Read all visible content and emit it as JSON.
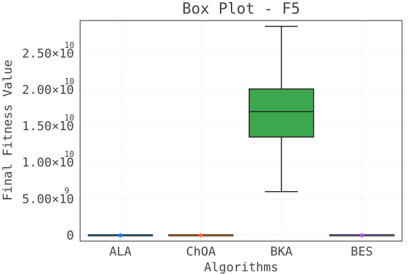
{
  "chart_data": {
    "type": "box",
    "title": "Box Plot - F5",
    "xlabel": "Algorithms",
    "ylabel": "Final Fitness Value",
    "categories": [
      "ALA",
      "ChOA",
      "BKA",
      "BES"
    ],
    "ylim": [
      -800000000,
      29500000000
    ],
    "yticks": [
      {
        "value": 0,
        "mantissa": "0",
        "exponent": ""
      },
      {
        "value": 5000000000,
        "mantissa": "5.00×10",
        "exponent": "9"
      },
      {
        "value": 10000000000,
        "mantissa": "1.00×10",
        "exponent": "10"
      },
      {
        "value": 15000000000,
        "mantissa": "1.50×10",
        "exponent": "10"
      },
      {
        "value": 20000000000,
        "mantissa": "2.00×10",
        "exponent": "10"
      },
      {
        "value": 25000000000,
        "mantissa": "2.50×10",
        "exponent": "10"
      }
    ],
    "grid": true,
    "boxes": [
      {
        "name": "ALA",
        "min": 0,
        "q1": 0,
        "median": 0,
        "q3": 0,
        "max": 0,
        "color": "#1f77b4",
        "marker": "#1f77e4"
      },
      {
        "name": "ChOA",
        "min": 0,
        "q1": 0,
        "median": 0,
        "q3": 0,
        "max": 0,
        "color": "#ff7f0e",
        "marker": "#ff6f2e"
      },
      {
        "name": "BKA",
        "min": 6000000000,
        "q1": 13500000000,
        "median": 17000000000,
        "q3": 20100000000,
        "max": 28700000000,
        "color": "#3ca74c",
        "marker": "#3ca74c"
      },
      {
        "name": "BES",
        "min": 0,
        "q1": 0,
        "median": 0,
        "q3": 0,
        "max": 0,
        "color": "#9467bd",
        "marker": "#b057d6"
      }
    ]
  }
}
